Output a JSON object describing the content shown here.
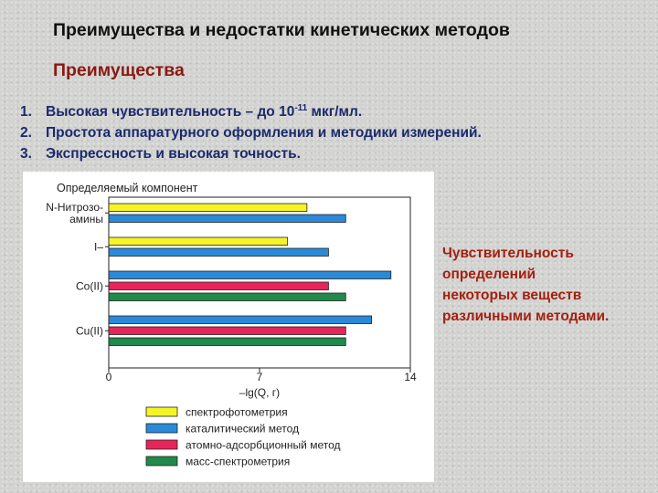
{
  "slide": {
    "title": "Преимущества и недостатки кинетических методов",
    "section": "Преимущества",
    "points": [
      {
        "num": "1.",
        "text": "Высокая чувствительность – до 10",
        "sup": "-11",
        "tail": " мкг/мл."
      },
      {
        "num": "2.",
        "text": "Простота аппаратурного оформления и методики измерений.",
        "sup": "",
        "tail": ""
      },
      {
        "num": "3.",
        "text": "Экспрессность и высокая точность.",
        "sup": "",
        "tail": ""
      }
    ],
    "note_lines": [
      "Чувствительность",
      "определений",
      "некоторых веществ",
      "различными методами."
    ]
  },
  "chart_data": {
    "type": "bar",
    "orientation": "horizontal",
    "title": "Определяемый компонент",
    "xlabel": "–lg(Q, г)",
    "xlim": [
      0,
      14
    ],
    "xticks": [
      "0",
      "7",
      "14"
    ],
    "categories": [
      {
        "label_lines": [
          "N-Нитрозо-",
          "амины"
        ],
        "bars": [
          {
            "series": "спектрофотометрия",
            "value": 9.2
          },
          {
            "series": "каталитический метод",
            "value": 11
          }
        ]
      },
      {
        "label_lines": [
          "I–"
        ],
        "bars": [
          {
            "series": "спектрофотометрия",
            "value": 8.3
          },
          {
            "series": "каталитический метод",
            "value": 10.2
          }
        ]
      },
      {
        "label_lines": [
          "Co(II)"
        ],
        "bars": [
          {
            "series": "каталитический метод",
            "value": 13.1
          },
          {
            "series": "атомно-адсорбционный метод",
            "value": 10.2
          },
          {
            "series": "масс-спектрометрия",
            "value": 11
          }
        ]
      },
      {
        "label_lines": [
          "Cu(II)"
        ],
        "bars": [
          {
            "series": "каталитический метод",
            "value": 12.2
          },
          {
            "series": "атомно-адсорбционный метод",
            "value": 11
          },
          {
            "series": "масс-спектрометрия",
            "value": 11
          }
        ]
      }
    ],
    "legend": [
      {
        "name": "спектрофотометрия",
        "color": "#f5f526"
      },
      {
        "name": "каталитический метод",
        "color": "#2a8ad8"
      },
      {
        "name": "атомно-адсорбционный метод",
        "color": "#e8245a"
      },
      {
        "name": "масс-спектрометрия",
        "color": "#1f8a4a"
      }
    ],
    "legend_position": "bottom",
    "grid": false
  }
}
